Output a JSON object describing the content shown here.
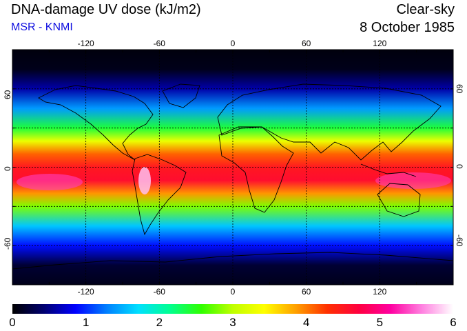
{
  "header": {
    "title": "DNA-damage UV dose (kJ/m2)",
    "subtitle": "MSR - KNMI",
    "sky_condition": "Clear-sky",
    "date": "8 October 1985"
  },
  "colors": {
    "subtitle": "#1010e0",
    "frame": "#000000",
    "gridlines": "#000000",
    "coastline": "#000000"
  },
  "map": {
    "projection": "equirectangular",
    "lon_range": [
      -180,
      180
    ],
    "lat_range": [
      -90,
      90
    ],
    "grid": "dashed",
    "lon_ticks": [
      "-120",
      "-60",
      "0",
      "60",
      "120"
    ],
    "lat_ticks": [
      "60",
      "0",
      "-60"
    ]
  },
  "colorbar": {
    "min": 0,
    "max": 6,
    "labels": [
      "0",
      "1",
      "2",
      "3",
      "4",
      "5",
      "6"
    ],
    "stops": [
      "#000000",
      "#000070",
      "#0000ff",
      "#0080ff",
      "#00e0ff",
      "#00ff90",
      "#30ff00",
      "#c0ff00",
      "#ffff00",
      "#ffa000",
      "#ff3000",
      "#ff0040",
      "#ff00a0",
      "#ff80e0",
      "#ffffff"
    ]
  },
  "chart_data": {
    "type": "heatmap",
    "title": "DNA-damage UV dose (kJ/m2)",
    "value_range": [
      0,
      6
    ],
    "zonal_profile_lat": [
      -90,
      -75,
      -60,
      -45,
      -30,
      -20,
      -10,
      0,
      10,
      20,
      30,
      45,
      60,
      75,
      90
    ],
    "zonal_profile_dose": [
      0.1,
      0.2,
      0.9,
      1.6,
      2.8,
      3.9,
      4.6,
      4.5,
      4.1,
      3.3,
      2.4,
      1.4,
      0.6,
      0.1,
      0.05
    ]
  }
}
